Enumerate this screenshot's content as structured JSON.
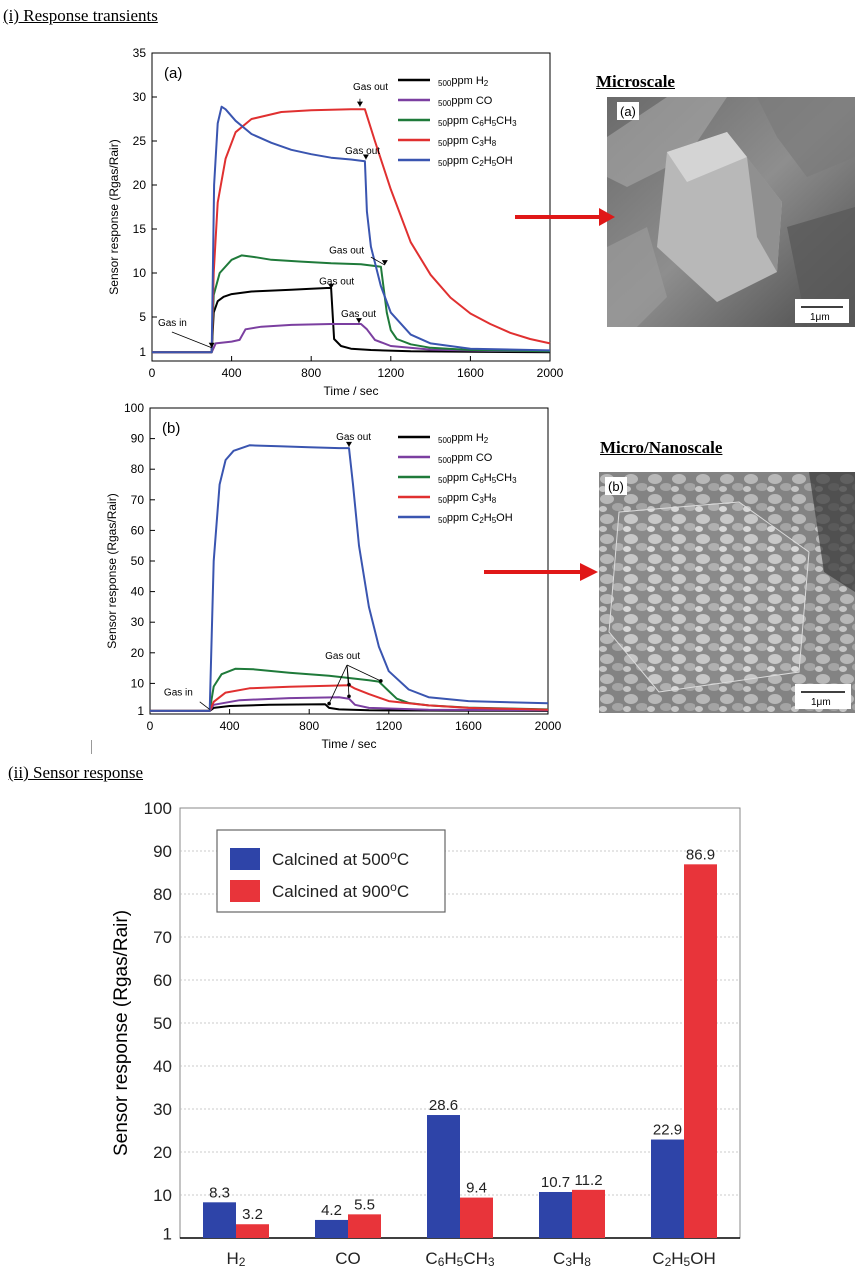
{
  "sections": {
    "transients": "(i) Response transients",
    "response": "(ii) Sensor response"
  },
  "micrographs": {
    "micro_title": "Microscale",
    "nano_title": "Micro/Nanoscale",
    "micro_panel": "(a)",
    "nano_panel": "(b)",
    "scale": "1μm"
  },
  "colors": {
    "h2": "#000000",
    "co": "#7b3fa0",
    "toluene": "#1f7a3a",
    "propane": "#e03030",
    "ethanol": "#3a55b0",
    "bar500": "#2e44a8",
    "bar900": "#e8343a",
    "arrow": "#e01818"
  },
  "chart_data": [
    {
      "type": "line",
      "panel_label": "(a)",
      "xlabel": "Time / sec",
      "ylabel": "Sensor response (Rgas/Rair)",
      "xlim": [
        0,
        2000
      ],
      "ylim": [
        0,
        35
      ],
      "xticks": [
        0,
        400,
        800,
        1200,
        1600,
        2000
      ],
      "yticks": [
        1,
        5,
        10,
        15,
        20,
        25,
        30,
        35
      ],
      "legend": [
        "500ppm H2",
        "500ppm CO",
        "50ppm C6H5CH3",
        "50ppm C3H8",
        "50ppm C2H5OH"
      ],
      "annotations": [
        "Gas in",
        "Gas out",
        "Gas out",
        "Gas out",
        "Gas out",
        "Gas out"
      ],
      "series": [
        {
          "name": "500ppm H2",
          "key": "h2",
          "x": [
            0,
            300,
            310,
            330,
            360,
            400,
            500,
            600,
            700,
            800,
            880,
            900,
            915,
            950,
            1000,
            1100,
            1300,
            1600,
            2000
          ],
          "y": [
            1,
            1,
            5.5,
            6.8,
            7.3,
            7.6,
            7.9,
            8.0,
            8.1,
            8.2,
            8.3,
            8.3,
            2.5,
            1.7,
            1.4,
            1.25,
            1.1,
            1.05,
            1.0
          ]
        },
        {
          "name": "500ppm CO",
          "key": "co",
          "x": [
            0,
            300,
            320,
            400,
            440,
            470,
            550,
            700,
            900,
            1050,
            1080,
            1120,
            1200,
            1400,
            1700,
            2000
          ],
          "y": [
            1,
            1,
            2.0,
            2.2,
            2.4,
            3.6,
            3.9,
            4.1,
            4.2,
            4.2,
            3.6,
            2.4,
            1.7,
            1.3,
            1.15,
            1.1
          ]
        },
        {
          "name": "50ppm C6H5CH3",
          "key": "toluene",
          "x": [
            0,
            300,
            310,
            340,
            400,
            450,
            520,
            600,
            750,
            900,
            1050,
            1150,
            1180,
            1200,
            1230,
            1300,
            1400,
            1600,
            2000
          ],
          "y": [
            1,
            1,
            7.5,
            10.0,
            11.5,
            12.0,
            11.8,
            11.5,
            11.3,
            11.1,
            11.0,
            10.7,
            5.5,
            3.5,
            2.5,
            1.9,
            1.5,
            1.25,
            1.1
          ]
        },
        {
          "name": "50ppm C3H8",
          "key": "propane",
          "x": [
            0,
            300,
            310,
            330,
            370,
            420,
            500,
            650,
            800,
            1000,
            1070,
            1120,
            1200,
            1300,
            1400,
            1500,
            1600,
            1700,
            1800,
            1900,
            2000
          ],
          "y": [
            1,
            1,
            10,
            18,
            23,
            26,
            27.5,
            28.3,
            28.5,
            28.6,
            28.6,
            25,
            19.5,
            13.5,
            9.8,
            7.2,
            5.4,
            4.2,
            3.2,
            2.5,
            2.0
          ]
        },
        {
          "name": "50ppm C2H5OH",
          "key": "ethanol",
          "x": [
            0,
            300,
            312,
            330,
            350,
            370,
            420,
            500,
            600,
            700,
            800,
            900,
            1000,
            1070,
            1080,
            1100,
            1150,
            1200,
            1300,
            1400,
            1600,
            2000
          ],
          "y": [
            1,
            1,
            20,
            27,
            28.9,
            28.6,
            27.3,
            25.8,
            24.8,
            24.0,
            23.5,
            23.1,
            22.9,
            22.7,
            17,
            13,
            8.5,
            5.5,
            3.0,
            2.0,
            1.4,
            1.2
          ]
        }
      ]
    },
    {
      "type": "line",
      "panel_label": "(b)",
      "xlabel": "Time / sec",
      "ylabel": "Sensor response (Rgas/Rair)",
      "xlim": [
        0,
        2000
      ],
      "ylim": [
        0,
        100
      ],
      "xticks": [
        0,
        400,
        800,
        1200,
        1600,
        2000
      ],
      "yticks": [
        1,
        10,
        20,
        30,
        40,
        50,
        60,
        70,
        80,
        90,
        100
      ],
      "legend": [
        "500ppm H2",
        "500ppm CO",
        "50ppm C6H5CH3",
        "50ppm C3H8",
        "50ppm C2H5OH"
      ],
      "annotations": [
        "Gas in",
        "Gas out",
        "Gas out"
      ],
      "series": [
        {
          "name": "500ppm H2",
          "key": "h2",
          "x": [
            0,
            300,
            320,
            400,
            600,
            880,
            900,
            950,
            1100,
            1500,
            2000
          ],
          "y": [
            1,
            1,
            2.0,
            2.6,
            3.0,
            3.2,
            2.0,
            1.5,
            1.2,
            1.1,
            1.0
          ]
        },
        {
          "name": "500ppm CO",
          "key": "co",
          "x": [
            0,
            300,
            320,
            450,
            700,
            950,
            1000,
            1030,
            1100,
            1400,
            2000
          ],
          "y": [
            1,
            1,
            3.0,
            4.5,
            5.2,
            5.5,
            5.0,
            3.0,
            2.0,
            1.4,
            1.2
          ]
        },
        {
          "name": "50ppm C6H5CH3",
          "key": "toluene",
          "x": [
            0,
            300,
            320,
            360,
            430,
            520,
            700,
            900,
            1100,
            1150,
            1200,
            1240,
            1300,
            1400,
            1600,
            2000
          ],
          "y": [
            1,
            1,
            9,
            13,
            14.8,
            14.6,
            13.5,
            12.5,
            11.0,
            10.6,
            7.5,
            5.0,
            3.6,
            2.8,
            2.1,
            1.5
          ]
        },
        {
          "name": "50ppm C3H8",
          "key": "propane",
          "x": [
            0,
            300,
            320,
            380,
            500,
            700,
            900,
            1000,
            1030,
            1100,
            1200,
            1400,
            1600,
            2000
          ],
          "y": [
            1,
            1,
            4,
            7,
            8.4,
            8.9,
            9.2,
            9.4,
            8.3,
            6.5,
            4.2,
            2.8,
            2.0,
            1.4
          ]
        },
        {
          "name": "50ppm C2H5OH",
          "key": "ethanol",
          "x": [
            0,
            300,
            320,
            350,
            380,
            420,
            500,
            650,
            800,
            950,
            1000,
            1020,
            1050,
            1100,
            1150,
            1200,
            1300,
            1400,
            1600,
            2000
          ],
          "y": [
            1,
            1,
            50,
            75,
            83,
            86,
            87.8,
            87.5,
            87.2,
            86.9,
            86.9,
            75,
            55,
            35,
            22,
            14,
            8,
            5.5,
            4.2,
            3.5
          ]
        }
      ]
    },
    {
      "type": "bar",
      "ylabel": "Sensor response (Rgas/Rair)",
      "ylim": [
        0,
        100
      ],
      "yticks": [
        1,
        10,
        20,
        30,
        40,
        50,
        60,
        70,
        80,
        90,
        100
      ],
      "categories": [
        "H2",
        "CO",
        "C6H5CH3",
        "C3H8",
        "C2H5OH"
      ],
      "series": [
        {
          "name": "Calcined at 500oC",
          "key": "bar500",
          "values": [
            8.3,
            4.2,
            28.6,
            10.7,
            22.9
          ]
        },
        {
          "name": "Calcined at 900oC",
          "key": "bar900",
          "values": [
            3.2,
            5.5,
            9.4,
            11.2,
            86.9
          ]
        }
      ],
      "value_labels": [
        [
          "8.3",
          "4.2",
          "28.6",
          "10.7",
          "22.9"
        ],
        [
          "3.2",
          "5.5",
          "9.4",
          "11.2",
          "86.9"
        ]
      ]
    }
  ]
}
